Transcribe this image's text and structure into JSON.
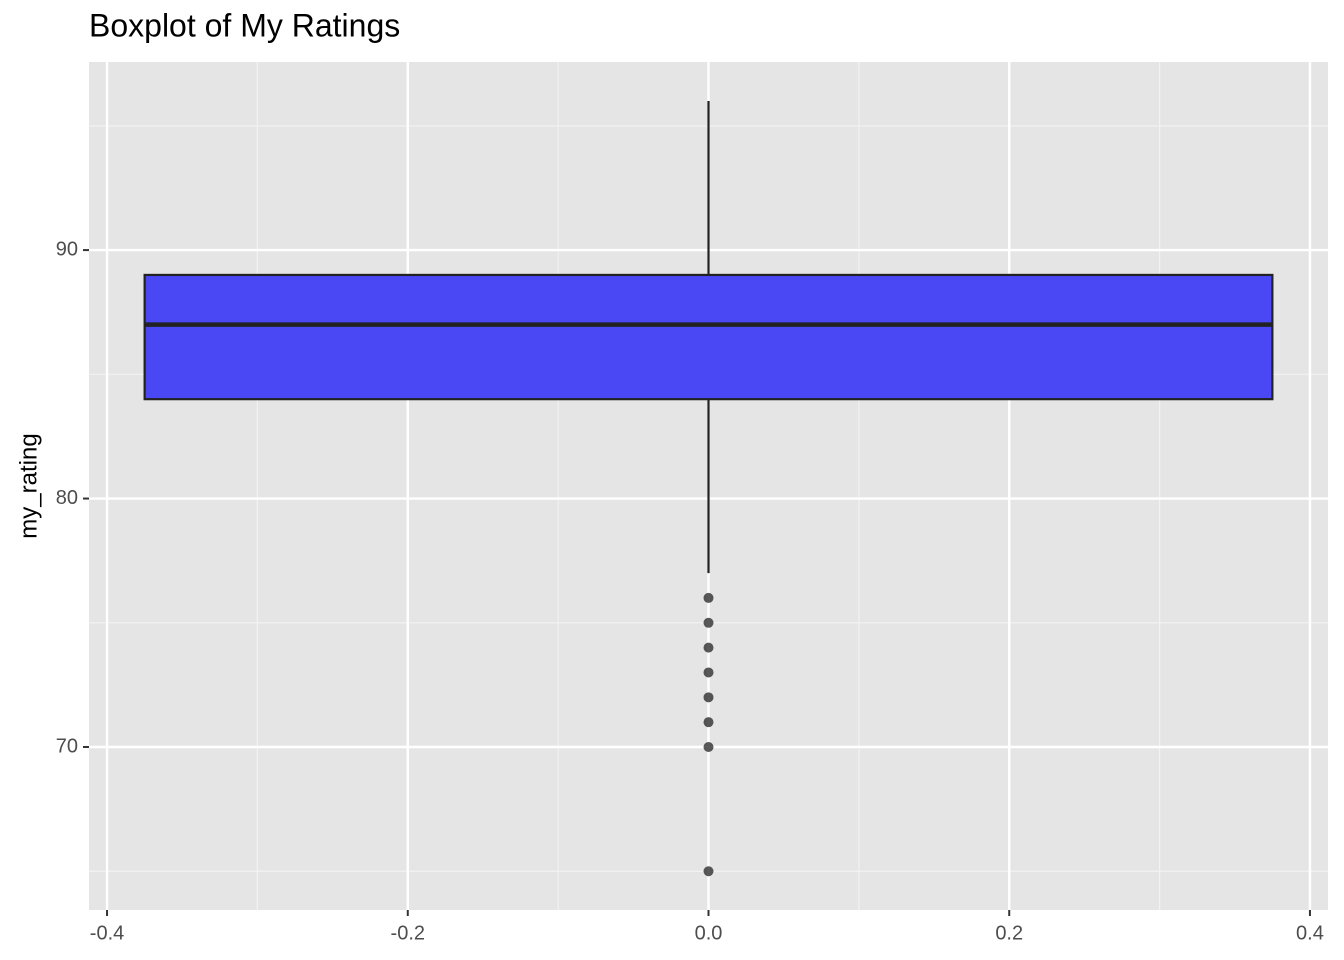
{
  "chart_data": {
    "type": "box",
    "title": "Boxplot of My Ratings",
    "y_label": "my_rating",
    "xlim": [
      -0.412,
      0.412
    ],
    "xticks": [
      -0.4,
      -0.2,
      {
        "value": 0,
        "label": "0.0"
      },
      0.2,
      0.4
    ],
    "x_minor_ticks": [
      -0.3,
      -0.1,
      0.1,
      0.3
    ],
    "ylim": [
      63.44,
      97.57
    ],
    "yticks": [
      70,
      80,
      90
    ],
    "y_minor_ticks": [
      65,
      75,
      85,
      95
    ],
    "grid": true,
    "color": "#4a47f5",
    "boxes": [
      {
        "x": 0,
        "width": 0.75,
        "whislo": 77,
        "q1": 84,
        "median": 87,
        "q3": 89,
        "whishi": 96,
        "fliers": [
          76,
          75,
          74,
          73,
          72,
          71,
          70,
          65
        ]
      }
    ]
  }
}
